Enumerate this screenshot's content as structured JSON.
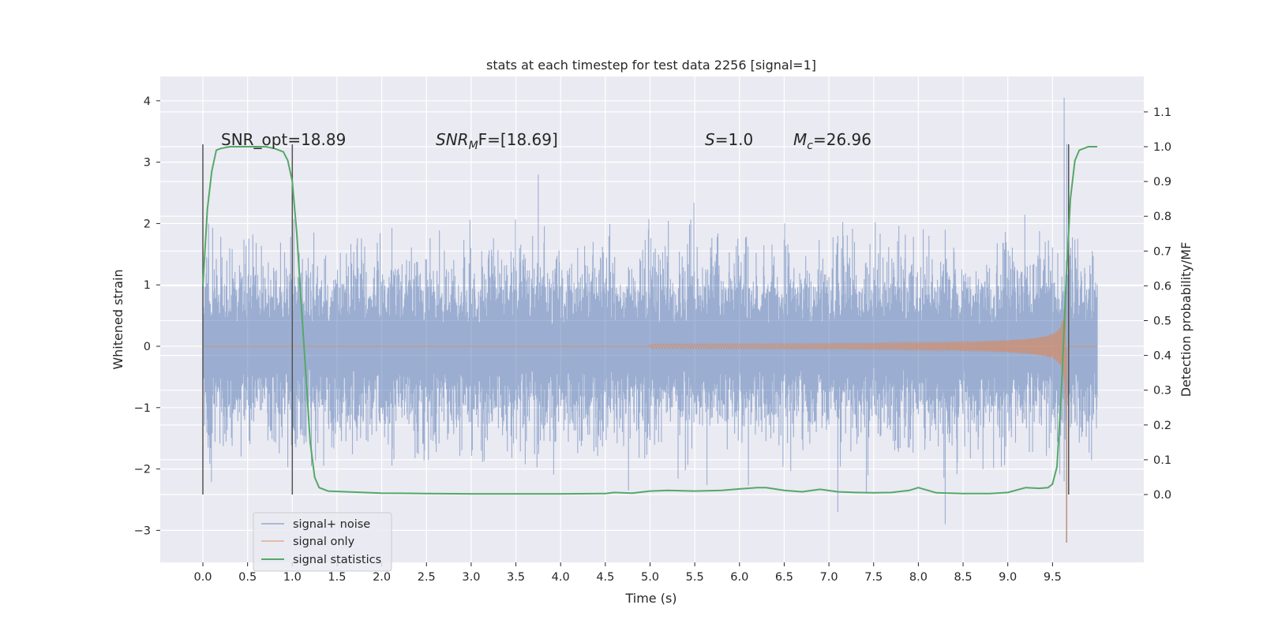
{
  "chart_data": {
    "type": "line",
    "title": "stats at each timestep for test data 2256 [signal=1]",
    "xlabel": "Time (s)",
    "ylabel": "Whitened strain",
    "ylabel_right": "Detection probability/MF",
    "xlim": [
      -0.2,
      10.8
    ],
    "ylim": [
      -3.5,
      4.4
    ],
    "ylim_right": [
      -0.2,
      1.19
    ],
    "x_ticks": [
      "0.0",
      "0.5",
      "1.0",
      "1.5",
      "2.0",
      "2.5",
      "3.0",
      "3.5",
      "4.0",
      "4.5",
      "5.0",
      "5.5",
      "6.0",
      "6.5",
      "7.0",
      "7.5",
      "8.0",
      "8.5",
      "9.0",
      "9.5"
    ],
    "y_ticks": [
      "−3",
      "−2",
      "−1",
      "0",
      "1",
      "2",
      "3",
      "4"
    ],
    "y_right_ticks": [
      "0.0",
      "0.1",
      "0.2",
      "0.3",
      "0.4",
      "0.5",
      "0.6",
      "0.7",
      "0.8",
      "0.9",
      "1.0",
      "1.1"
    ],
    "grid": true,
    "legend_placement": "lower-left",
    "colors": {
      "background": "#eaeaf2",
      "grid": "#ffffff",
      "noise": "#4c72b0",
      "signal": "#dd8452",
      "statistics": "#55a868",
      "marker": "#555555"
    },
    "series": [
      {
        "name": "signal+ noise",
        "description_kind": "whitened noisy strain, amplitude ~1 with spikes to ~2.5",
        "x_range": [
          0.0,
          10.0
        ],
        "typical_amplitude": 1.0,
        "max": 4.05,
        "min": -3.2
      },
      {
        "name": "signal only",
        "x_range": [
          0.0,
          10.0
        ],
        "chirp_start": 5.0,
        "merger_time": 9.65,
        "peak_amplitude": 2.4,
        "min": -3.2
      },
      {
        "name": "signal statistics",
        "axis": "right",
        "x": [
          0.0,
          0.05,
          0.1,
          0.15,
          0.2,
          0.3,
          0.5,
          0.7,
          0.8,
          0.9,
          0.95,
          1.0,
          1.05,
          1.1,
          1.15,
          1.2,
          1.25,
          1.3,
          1.4,
          1.6,
          2.0,
          2.5,
          3.0,
          3.5,
          4.0,
          4.5,
          4.6,
          4.8,
          5.0,
          5.2,
          5.5,
          5.8,
          6.0,
          6.2,
          6.3,
          6.5,
          6.7,
          6.9,
          7.1,
          7.3,
          7.5,
          7.7,
          7.9,
          8.0,
          8.2,
          8.5,
          8.8,
          9.0,
          9.2,
          9.35,
          9.45,
          9.5,
          9.55,
          9.6,
          9.65,
          9.7,
          9.75,
          9.8,
          9.85,
          9.9,
          10.0
        ],
        "values": [
          0.6,
          0.82,
          0.93,
          0.99,
          0.995,
          1.0,
          1.0,
          1.0,
          0.995,
          0.985,
          0.96,
          0.9,
          0.75,
          0.55,
          0.35,
          0.15,
          0.05,
          0.02,
          0.01,
          0.008,
          0.004,
          0.003,
          0.002,
          0.002,
          0.002,
          0.003,
          0.006,
          0.004,
          0.01,
          0.012,
          0.01,
          0.012,
          0.016,
          0.02,
          0.02,
          0.012,
          0.008,
          0.015,
          0.008,
          0.006,
          0.005,
          0.006,
          0.012,
          0.02,
          0.005,
          0.003,
          0.003,
          0.006,
          0.02,
          0.018,
          0.02,
          0.03,
          0.08,
          0.3,
          0.6,
          0.85,
          0.96,
          0.99,
          0.995,
          1.0,
          1.0
        ]
      }
    ],
    "vertical_markers": [
      0.0,
      1.0,
      9.68
    ],
    "annotations": {
      "snr_opt": "SNR_opt=18.89",
      "snr_mf_base": "SNR",
      "snr_mf_sub": "M",
      "snr_mf_rest": "F=[18.69]",
      "s_label": "S",
      "s_value": "=1.0",
      "mc_base": "M",
      "mc_sub": "c",
      "mc_value": "=26.96"
    }
  }
}
